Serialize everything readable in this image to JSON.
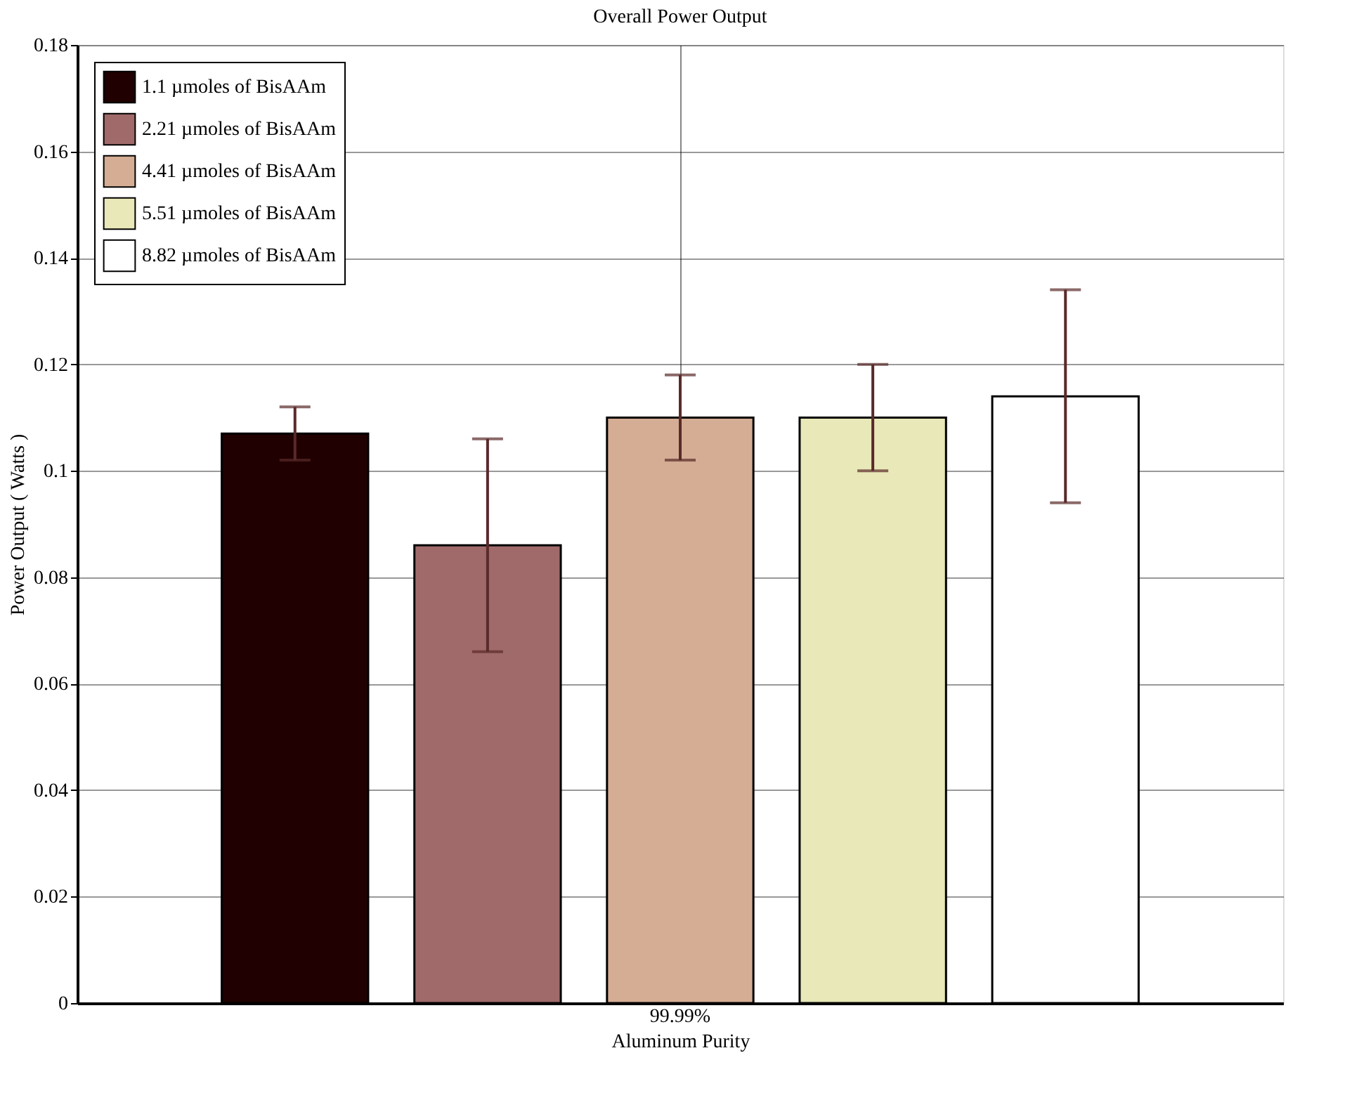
{
  "chart_data": {
    "type": "bar",
    "title": "Overall Power Output",
    "xlabel": "Aluminum Purity",
    "ylabel": "Power Output ( Watts )",
    "categories": [
      "99.99%"
    ],
    "series": [
      {
        "name": "1.1 µmoles of BisAAm",
        "color": "#200000",
        "values": [
          0.107
        ],
        "errors": [
          0.005
        ]
      },
      {
        "name": "2.21 µmoles of BisAAm",
        "color": "#a06a6a",
        "values": [
          0.086
        ],
        "errors": [
          0.02
        ]
      },
      {
        "name": "4.41 µmoles of BisAAm",
        "color": "#d4ad94",
        "values": [
          0.11
        ],
        "errors": [
          0.008
        ]
      },
      {
        "name": "5.51 µmoles of BisAAm",
        "color": "#e8e8b8",
        "values": [
          0.11
        ],
        "errors": [
          0.01
        ]
      },
      {
        "name": "8.82 µmoles of BisAAm",
        "color": "#ffffff",
        "values": [
          0.114
        ],
        "errors": [
          0.02
        ]
      }
    ],
    "ylim": [
      0,
      0.18
    ],
    "yticks": [
      0,
      0.02,
      0.04,
      0.06,
      0.08,
      0.1,
      0.12,
      0.14,
      0.16,
      0.18
    ],
    "grid": true,
    "legend": "top left"
  }
}
